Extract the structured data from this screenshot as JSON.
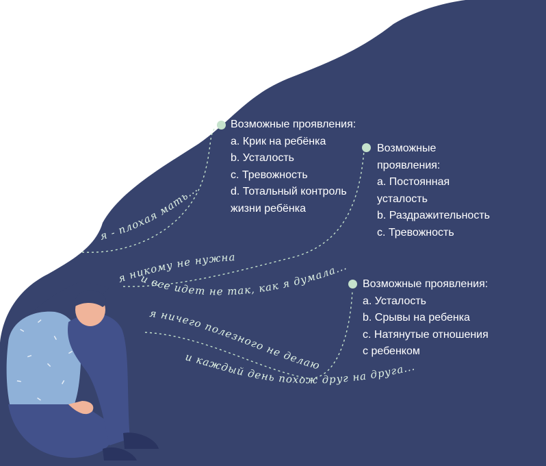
{
  "colors": {
    "hair": "#37436d",
    "bullet": "#c5e2cc",
    "text": "#ffffff",
    "script_text": "#dff1e4",
    "skin": "#f0b49a",
    "sweater": "#8fb1d8",
    "pants": "#42518b"
  },
  "blocks": [
    {
      "heading": "Возможные проявления:",
      "items": [
        "a. Крик на ребёнка",
        "b. Усталость",
        "c. Тревожность",
        "d. Тотальный контроль",
        "жизни ребёнка"
      ]
    },
    {
      "heading_lines": [
        "Возможные",
        "проявления:"
      ],
      "items": [
        "a. Постоянная",
        "усталость",
        "b. Раздражительность",
        "c. Тревожность"
      ]
    },
    {
      "heading": "Возможные проявления:",
      "items": [
        "a. Усталость",
        "b. Срывы на ребенка",
        "c. Натянутые отношения",
        "с ребенком"
      ]
    }
  ],
  "thoughts": [
    "я - плохая мать...",
    "я никому не нужна",
    "и все идет не так, как я думала...",
    "я ничего полезного не делаю",
    "и каждый день похож друг на друга..."
  ]
}
